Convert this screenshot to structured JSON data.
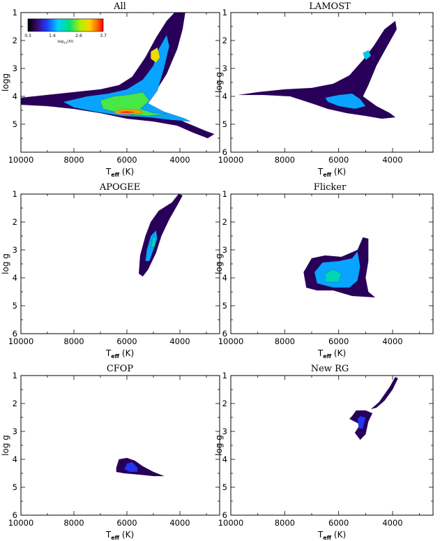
{
  "chart_data": [
    {
      "type": "contour",
      "title": "All",
      "xlabel": "T_eff (K)",
      "ylabel": "logg",
      "xlim": [
        10000,
        2500
      ],
      "ylim": [
        6,
        1
      ],
      "xticks": [
        "10000",
        "8000",
        "6000",
        "4000"
      ],
      "yticks": [
        "1",
        "2",
        "3",
        "4",
        "5"
      ],
      "colorbar": {
        "label": "log10(N)",
        "ticks": [
          "0.3",
          "1.4",
          "2.6",
          "3.7"
        ],
        "range": [
          0.3,
          3.7
        ]
      },
      "regions": [
        {
          "level": 0.3,
          "points": [
            [
              10000,
              4.05
            ],
            [
              9000,
              3.95
            ],
            [
              8000,
              3.85
            ],
            [
              7000,
              3.75
            ],
            [
              6300,
              3.6
            ],
            [
              5800,
              3.3
            ],
            [
              5300,
              2.6
            ],
            [
              4900,
              1.9
            ],
            [
              4500,
              1.3
            ],
            [
              4200,
              1.0
            ],
            [
              3800,
              1.0
            ],
            [
              3900,
              1.6
            ],
            [
              4100,
              2.3
            ],
            [
              4500,
              3.2
            ],
            [
              5000,
              3.95
            ],
            [
              5500,
              4.25
            ],
            [
              5000,
              4.55
            ],
            [
              4500,
              4.75
            ],
            [
              4000,
              4.85
            ],
            [
              3500,
              5.05
            ],
            [
              3000,
              5.25
            ],
            [
              2700,
              5.35
            ],
            [
              2950,
              5.5
            ],
            [
              3500,
              5.3
            ],
            [
              4100,
              5.05
            ],
            [
              5000,
              4.9
            ],
            [
              6000,
              4.8
            ],
            [
              7000,
              4.6
            ],
            [
              8000,
              4.45
            ],
            [
              9000,
              4.35
            ],
            [
              10000,
              4.3
            ]
          ]
        },
        {
          "level": 1.4,
          "points": [
            [
              8400,
              4.2
            ],
            [
              7500,
              4.0
            ],
            [
              6700,
              3.9
            ],
            [
              6000,
              3.75
            ],
            [
              5400,
              3.4
            ],
            [
              5000,
              2.9
            ],
            [
              4800,
              2.3
            ],
            [
              4500,
              1.8
            ],
            [
              4400,
              2.2
            ],
            [
              4600,
              3.0
            ],
            [
              4850,
              3.8
            ],
            [
              5200,
              4.25
            ],
            [
              4600,
              4.55
            ],
            [
              3800,
              4.8
            ],
            [
              3600,
              4.9
            ],
            [
              4300,
              4.85
            ],
            [
              5200,
              4.75
            ],
            [
              6200,
              4.7
            ],
            [
              7200,
              4.55
            ],
            [
              8000,
              4.4
            ]
          ]
        },
        {
          "level": 2.2,
          "points": [
            [
              7000,
              4.15
            ],
            [
              6500,
              4.0
            ],
            [
              6000,
              3.95
            ],
            [
              5400,
              3.85
            ],
            [
              5150,
              4.15
            ],
            [
              5500,
              4.45
            ],
            [
              5000,
              4.6
            ],
            [
              4500,
              4.62
            ],
            [
              5200,
              4.7
            ],
            [
              6200,
              4.62
            ],
            [
              6900,
              4.45
            ]
          ]
        },
        {
          "level": 2.8,
          "points": [
            [
              5100,
              2.4
            ],
            [
              4850,
              2.25
            ],
            [
              4750,
              2.6
            ],
            [
              4900,
              2.8
            ],
            [
              5100,
              2.65
            ]
          ]
        },
        {
          "level": 3.1,
          "points": [
            [
              6500,
              4.55
            ],
            [
              6100,
              4.45
            ],
            [
              5500,
              4.5
            ],
            [
              5400,
              4.6
            ],
            [
              6000,
              4.65
            ],
            [
              6400,
              4.63
            ]
          ]
        },
        {
          "level": 3.5,
          "points": [
            [
              6300,
              4.57
            ],
            [
              6000,
              4.53
            ],
            [
              5700,
              4.57
            ],
            [
              6000,
              4.6
            ]
          ]
        }
      ]
    },
    {
      "type": "contour",
      "title": "LAMOST",
      "xlabel": "T_eff (K)",
      "ylabel": "log g",
      "xlim": [
        10000,
        2500
      ],
      "ylim": [
        6,
        1
      ],
      "xticks": [
        "10000",
        "8000",
        "6000",
        "4000"
      ],
      "yticks": [
        "1",
        "2",
        "3",
        "4",
        "5",
        "6"
      ],
      "regions": [
        {
          "level": 0.3,
          "points": [
            [
              9700,
              3.95
            ],
            [
              9000,
              3.85
            ],
            [
              8000,
              3.75
            ],
            [
              7000,
              3.7
            ],
            [
              6200,
              3.55
            ],
            [
              5600,
              3.25
            ],
            [
              5100,
              2.7
            ],
            [
              4700,
              2.2
            ],
            [
              4300,
              1.6
            ],
            [
              3900,
              1.3
            ],
            [
              3850,
              1.6
            ],
            [
              4200,
              2.2
            ],
            [
              4600,
              2.9
            ],
            [
              4900,
              3.6
            ],
            [
              5100,
              4.0
            ],
            [
              4600,
              4.35
            ],
            [
              4100,
              4.6
            ],
            [
              3900,
              4.75
            ],
            [
              4400,
              4.8
            ],
            [
              5000,
              4.7
            ],
            [
              5700,
              4.6
            ],
            [
              6400,
              4.45
            ],
            [
              7000,
              4.25
            ],
            [
              7800,
              4.0
            ],
            [
              8800,
              3.95
            ]
          ]
        },
        {
          "level": 1.4,
          "points": [
            [
              6500,
              4.05
            ],
            [
              6000,
              3.95
            ],
            [
              5500,
              3.9
            ],
            [
              5200,
              4.1
            ],
            [
              5000,
              4.35
            ],
            [
              5400,
              4.45
            ],
            [
              6000,
              4.35
            ],
            [
              6400,
              4.2
            ]
          ]
        },
        {
          "level": 1.6,
          "points": [
            [
              5100,
              2.45
            ],
            [
              4900,
              2.35
            ],
            [
              4800,
              2.55
            ],
            [
              5000,
              2.7
            ]
          ]
        }
      ]
    },
    {
      "type": "contour",
      "title": "APOGEE",
      "xlabel": "T_eff (K)",
      "ylabel": "log g",
      "xlim": [
        10000,
        2500
      ],
      "ylim": [
        6,
        1
      ],
      "xticks": [
        "10000",
        "8000",
        "6000",
        "4000"
      ],
      "yticks": [
        "1",
        "2",
        "3",
        "4",
        "5",
        "6"
      ],
      "regions": [
        {
          "level": 0.3,
          "points": [
            [
              5550,
              3.85
            ],
            [
              5500,
              3.2
            ],
            [
              5300,
              2.5
            ],
            [
              5100,
              2.0
            ],
            [
              4800,
              1.6
            ],
            [
              4300,
              1.3
            ],
            [
              4050,
              1.0
            ],
            [
              3900,
              1.05
            ],
            [
              4100,
              1.4
            ],
            [
              4400,
              1.9
            ],
            [
              4700,
              2.5
            ],
            [
              4900,
              3.1
            ],
            [
              5200,
              3.7
            ],
            [
              5400,
              3.95
            ]
          ]
        },
        {
          "level": 1.4,
          "points": [
            [
              5300,
              3.4
            ],
            [
              5250,
              3.0
            ],
            [
              5100,
              2.5
            ],
            [
              4900,
              2.3
            ],
            [
              4850,
              2.6
            ],
            [
              5000,
              3.0
            ],
            [
              5150,
              3.4
            ]
          ]
        },
        {
          "level": 1.8,
          "points": [
            [
              5100,
              2.9
            ],
            [
              5000,
              2.5
            ],
            [
              4900,
              2.6
            ],
            [
              4950,
              2.9
            ]
          ]
        }
      ]
    },
    {
      "type": "contour",
      "title": "Flicker",
      "xlabel": "T_eff (K)",
      "ylabel": "log g",
      "xlim": [
        10000,
        2500
      ],
      "ylim": [
        6,
        1
      ],
      "xticks": [
        "10000",
        "8000",
        "6000",
        "4000"
      ],
      "yticks": [
        "1",
        "2",
        "3",
        "4",
        "5",
        "6"
      ],
      "regions": [
        {
          "level": 0.3,
          "points": [
            [
              7200,
              4.35
            ],
            [
              7300,
              3.8
            ],
            [
              7000,
              3.3
            ],
            [
              6500,
              3.2
            ],
            [
              5900,
              3.25
            ],
            [
              5300,
              3.0
            ],
            [
              5100,
              2.55
            ],
            [
              4900,
              2.6
            ],
            [
              4900,
              3.4
            ],
            [
              5000,
              4.0
            ],
            [
              4900,
              4.5
            ],
            [
              4650,
              4.7
            ],
            [
              5500,
              4.65
            ],
            [
              6200,
              4.45
            ],
            [
              6800,
              4.45
            ]
          ]
        },
        {
          "level": 1.4,
          "points": [
            [
              6800,
              4.2
            ],
            [
              6900,
              3.8
            ],
            [
              6600,
              3.45
            ],
            [
              6000,
              3.4
            ],
            [
              5500,
              3.3
            ],
            [
              5300,
              3.05
            ],
            [
              5200,
              3.6
            ],
            [
              5300,
              4.1
            ],
            [
              5600,
              4.35
            ],
            [
              6200,
              4.35
            ]
          ]
        },
        {
          "level": 1.8,
          "points": [
            [
              6500,
              4.15
            ],
            [
              6500,
              3.85
            ],
            [
              6200,
              3.7
            ],
            [
              5900,
              3.85
            ],
            [
              6000,
              4.15
            ]
          ]
        }
      ]
    },
    {
      "type": "contour",
      "title": "CFOP",
      "xlabel": "T_eff (K)",
      "ylabel": "log g",
      "xlim": [
        10000,
        2500
      ],
      "ylim": [
        6,
        1
      ],
      "xticks": [
        "10000",
        "8000",
        "6000",
        "4000"
      ],
      "yticks": [
        "1",
        "2",
        "3",
        "4",
        "5",
        "6"
      ],
      "regions": [
        {
          "level": 0.3,
          "points": [
            [
              6400,
              4.3
            ],
            [
              6300,
              4.0
            ],
            [
              6000,
              3.95
            ],
            [
              5700,
              4.05
            ],
            [
              5400,
              4.25
            ],
            [
              5000,
              4.45
            ],
            [
              4600,
              4.6
            ],
            [
              5000,
              4.6
            ],
            [
              5500,
              4.55
            ],
            [
              6100,
              4.5
            ],
            [
              6400,
              4.45
            ]
          ]
        },
        {
          "level": 1.0,
          "points": [
            [
              6100,
              4.35
            ],
            [
              6000,
              4.15
            ],
            [
              5800,
              4.1
            ],
            [
              5600,
              4.3
            ],
            [
              5600,
              4.45
            ],
            [
              5900,
              4.45
            ]
          ]
        }
      ]
    },
    {
      "type": "contour",
      "title": "New RG",
      "xlabel": "T_eff (K)",
      "ylabel": "log g",
      "xlim": [
        10000,
        2500
      ],
      "ylim": [
        6,
        1
      ],
      "xticks": [
        "10000",
        "8000",
        "6000",
        "4000"
      ],
      "yticks": [
        "1",
        "2",
        "3",
        "4",
        "5",
        "6"
      ],
      "regions": [
        {
          "level": 0.3,
          "points": [
            [
              5500,
              2.45
            ],
            [
              5350,
              2.25
            ],
            [
              5000,
              2.25
            ],
            [
              4750,
              2.35
            ],
            [
              4900,
              2.65
            ],
            [
              5000,
              3.1
            ],
            [
              5200,
              3.3
            ],
            [
              5400,
              3.05
            ],
            [
              5200,
              2.75
            ],
            [
              5600,
              2.55
            ]
          ]
        },
        {
          "level": 0.3,
          "points": [
            [
              4800,
              2.2
            ],
            [
              4500,
              1.95
            ],
            [
              4100,
              1.4
            ],
            [
              3900,
              1.05
            ],
            [
              3800,
              1.1
            ],
            [
              4000,
              1.5
            ],
            [
              4300,
              1.9
            ],
            [
              4600,
              2.15
            ]
          ]
        },
        {
          "level": 1.0,
          "points": [
            [
              5300,
              2.55
            ],
            [
              5200,
              2.45
            ],
            [
              5000,
              2.5
            ],
            [
              5100,
              2.9
            ],
            [
              5250,
              2.9
            ]
          ]
        }
      ]
    }
  ]
}
